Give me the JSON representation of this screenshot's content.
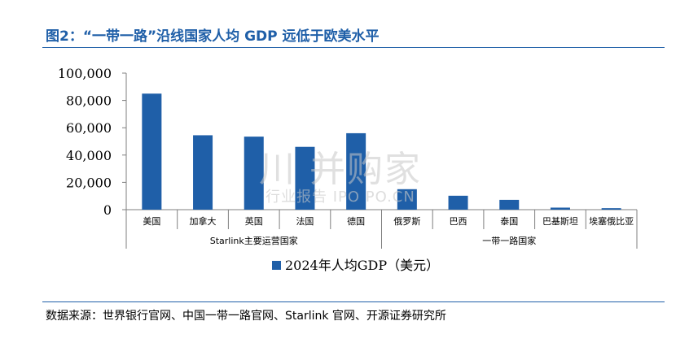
{
  "header": {
    "title": "图2：“一带一路”沿线国家人均  GDP 远低于欧美水平"
  },
  "source": {
    "text": "数据来源：世界银行官网、中国一带一路官网、Starlink 官网、开源证券研究所"
  },
  "watermark": {
    "main": "川 并购家",
    "sub": "行业报告 IPO PO.CN"
  },
  "colors": {
    "accent": "#1f5fa8",
    "bar": "#1f5fa8",
    "axis": "#7f7f7f"
  },
  "chart_data": {
    "type": "bar",
    "categories": [
      "美国",
      "加拿大",
      "英国",
      "法国",
      "德国",
      "俄罗斯",
      "巴西",
      "泰国",
      "巴基斯坦",
      "埃塞俄比亚"
    ],
    "groups": [
      {
        "label": "Starlink主要运营国家",
        "count": 5
      },
      {
        "label": "一带一路国家",
        "count": 5
      }
    ],
    "series": [
      {
        "name": "2024年人均GDP（美元）",
        "values": [
          85000,
          54500,
          53500,
          46000,
          56000,
          15000,
          10200,
          7200,
          1500,
          1100
        ]
      }
    ],
    "ylim": [
      0,
      100000
    ],
    "yticks": [
      "100,000",
      "80,000",
      "60,000",
      "40,000",
      "20,000",
      "0"
    ],
    "ytick_values": [
      100000,
      80000,
      60000,
      40000,
      20000,
      0
    ],
    "grid": false,
    "legend_position": "bottom-center"
  }
}
